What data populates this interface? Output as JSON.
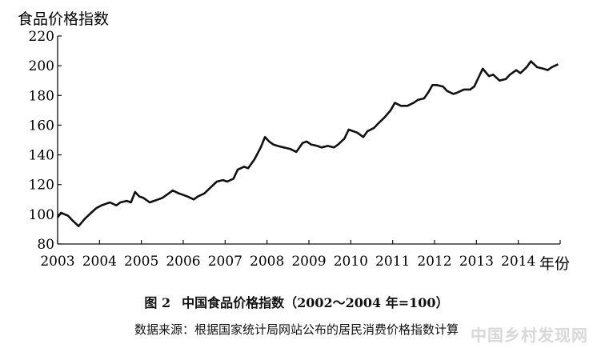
{
  "caption": {
    "figure_number": "图 2",
    "figure_title": "中国食品价格指数（2002～2004 年=100）",
    "source": "数据来源：根据国家统计局网站公布的居民消费价格指数计算"
  },
  "watermark": "中国乡村发现网",
  "chart_data": {
    "type": "line",
    "ylabel": "食品价格指数",
    "xlabel": "年份",
    "xlim": [
      2003,
      2015
    ],
    "ylim": [
      80,
      220
    ],
    "yticks": [
      80,
      100,
      120,
      140,
      160,
      180,
      200,
      220
    ],
    "xtick_labels": [
      "2003",
      "2004",
      "2005",
      "2006",
      "2007",
      "2008",
      "2009",
      "2010",
      "2011",
      "2012",
      "2013",
      "2014"
    ],
    "grid": false,
    "series": [
      {
        "x": [
          2003.0,
          2003.08,
          2003.25,
          2003.35,
          2003.5,
          2003.65,
          2003.8,
          2003.92,
          2004.05,
          2004.25,
          2004.4,
          2004.5,
          2004.65,
          2004.75,
          2004.85,
          2004.95,
          2005.05,
          2005.2,
          2005.3,
          2005.4,
          2005.5,
          2005.6,
          2005.75,
          2005.9,
          2006.0,
          2006.1,
          2006.25,
          2006.35,
          2006.5,
          2006.65,
          2006.8,
          2006.95,
          2007.05,
          2007.2,
          2007.3,
          2007.45,
          2007.55,
          2007.7,
          2007.85,
          2007.95,
          2008.05,
          2008.15,
          2008.25,
          2008.4,
          2008.55,
          2008.7,
          2008.85,
          2008.95,
          2009.05,
          2009.2,
          2009.3,
          2009.45,
          2009.6,
          2009.7,
          2009.85,
          2009.95,
          2010.05,
          2010.15,
          2010.3,
          2010.4,
          2010.55,
          2010.65,
          2010.8,
          2010.95,
          2011.05,
          2011.2,
          2011.35,
          2011.5,
          2011.6,
          2011.75,
          2011.85,
          2011.95,
          2012.05,
          2012.2,
          2012.3,
          2012.45,
          2012.55,
          2012.7,
          2012.85,
          2012.95,
          2013.05,
          2013.15,
          2013.3,
          2013.4,
          2013.55,
          2013.7,
          2013.8,
          2013.95,
          2014.05,
          2014.2,
          2014.3,
          2014.45,
          2014.6,
          2014.7,
          2014.8,
          2014.88,
          2014.95
        ],
        "y": [
          98,
          101,
          99,
          96,
          92,
          97,
          101,
          104,
          106,
          108,
          106,
          108,
          109,
          108,
          115,
          112,
          111,
          108,
          109,
          110,
          111,
          113,
          116,
          114,
          113,
          112,
          110,
          112,
          114,
          118,
          122,
          123,
          122,
          124,
          130,
          132,
          131,
          137,
          145,
          152,
          149,
          147,
          146,
          145,
          144,
          142,
          148,
          149,
          147,
          146,
          145,
          146,
          145,
          147,
          151,
          157,
          156,
          155,
          152,
          156,
          158,
          161,
          165,
          170,
          175,
          173,
          173,
          175,
          177,
          178,
          182,
          187,
          187,
          186,
          183,
          181,
          182,
          184,
          184,
          186,
          192,
          198,
          193,
          194,
          190,
          191,
          194,
          197,
          195,
          199,
          203,
          199,
          198,
          197,
          199,
          200,
          201
        ]
      }
    ]
  }
}
